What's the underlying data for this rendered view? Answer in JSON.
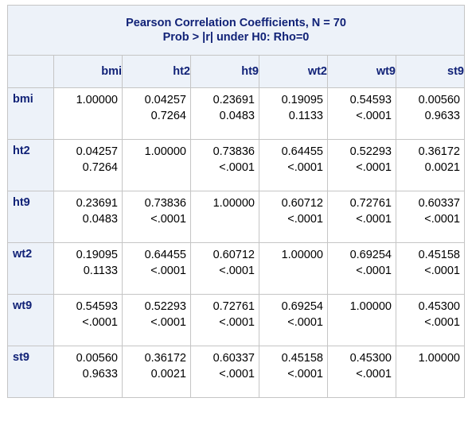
{
  "caption": {
    "line1": "Pearson Correlation Coefficients, N = 70",
    "line2": "Prob > |r| under H0: Rho=0"
  },
  "columns": [
    "bmi",
    "ht2",
    "ht9",
    "wt2",
    "wt9",
    "st9"
  ],
  "rows": [
    {
      "label": "bmi",
      "cells": [
        {
          "r": "1.00000",
          "p": ""
        },
        {
          "r": "0.04257",
          "p": "0.7264"
        },
        {
          "r": "0.23691",
          "p": "0.0483"
        },
        {
          "r": "0.19095",
          "p": "0.1133"
        },
        {
          "r": "0.54593",
          "p": "<.0001"
        },
        {
          "r": "0.00560",
          "p": "0.9633"
        }
      ]
    },
    {
      "label": "ht2",
      "cells": [
        {
          "r": "0.04257",
          "p": "0.7264"
        },
        {
          "r": "1.00000",
          "p": ""
        },
        {
          "r": "0.73836",
          "p": "<.0001"
        },
        {
          "r": "0.64455",
          "p": "<.0001"
        },
        {
          "r": "0.52293",
          "p": "<.0001"
        },
        {
          "r": "0.36172",
          "p": "0.0021"
        }
      ]
    },
    {
      "label": "ht9",
      "cells": [
        {
          "r": "0.23691",
          "p": "0.0483"
        },
        {
          "r": "0.73836",
          "p": "<.0001"
        },
        {
          "r": "1.00000",
          "p": ""
        },
        {
          "r": "0.60712",
          "p": "<.0001"
        },
        {
          "r": "0.72761",
          "p": "<.0001"
        },
        {
          "r": "0.60337",
          "p": "<.0001"
        }
      ]
    },
    {
      "label": "wt2",
      "cells": [
        {
          "r": "0.19095",
          "p": "0.1133"
        },
        {
          "r": "0.64455",
          "p": "<.0001"
        },
        {
          "r": "0.60712",
          "p": "<.0001"
        },
        {
          "r": "1.00000",
          "p": ""
        },
        {
          "r": "0.69254",
          "p": "<.0001"
        },
        {
          "r": "0.45158",
          "p": "<.0001"
        }
      ]
    },
    {
      "label": "wt9",
      "cells": [
        {
          "r": "0.54593",
          "p": "<.0001"
        },
        {
          "r": "0.52293",
          "p": "<.0001"
        },
        {
          "r": "0.72761",
          "p": "<.0001"
        },
        {
          "r": "0.69254",
          "p": "<.0001"
        },
        {
          "r": "1.00000",
          "p": ""
        },
        {
          "r": "0.45300",
          "p": "<.0001"
        }
      ]
    },
    {
      "label": "st9",
      "cells": [
        {
          "r": "0.00560",
          "p": "0.9633"
        },
        {
          "r": "0.36172",
          "p": "0.0021"
        },
        {
          "r": "0.60337",
          "p": "<.0001"
        },
        {
          "r": "0.45158",
          "p": "<.0001"
        },
        {
          "r": "0.45300",
          "p": "<.0001"
        },
        {
          "r": "1.00000",
          "p": ""
        }
      ]
    }
  ]
}
